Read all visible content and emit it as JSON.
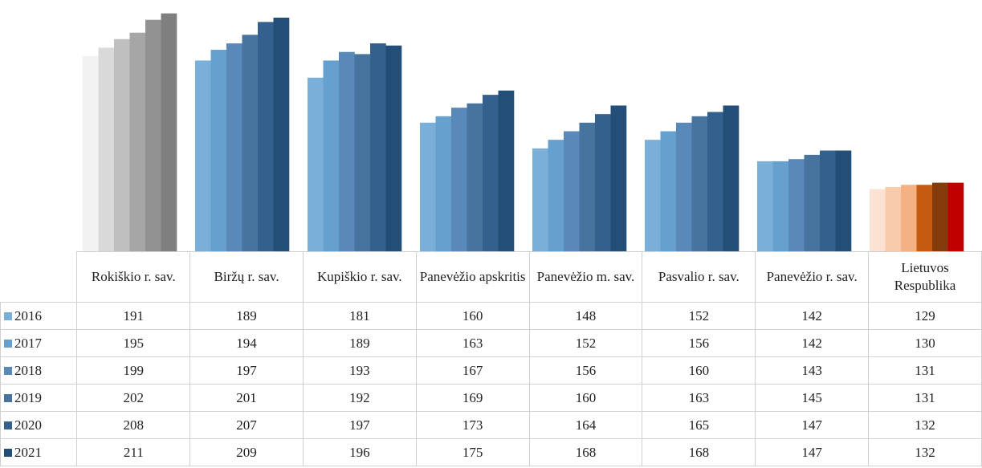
{
  "chart_data": {
    "type": "bar",
    "categories": [
      "Rokiškio r. sav.",
      "Biržų r. sav.",
      "Kupiškio r. sav.",
      "Panevėžio apskritis",
      "Panevėžio m. sav.",
      "Pasvalio r. sav.",
      "Panevėžio r. sav.",
      "Lietuvos Respublika"
    ],
    "ylim": [
      100,
      212
    ],
    "series": [
      {
        "name": "2016",
        "color": "#7aafd9",
        "point_colors": [
          "#f2f2f2",
          "#7aafd9",
          "#7aafd9",
          "#7aafd9",
          "#7aafd9",
          "#7aafd9",
          "#7aafd9",
          "#fbe2d2"
        ],
        "values": [
          191,
          189,
          181,
          160,
          148,
          152,
          142,
          129
        ]
      },
      {
        "name": "2017",
        "color": "#66a0cf",
        "point_colors": [
          "#d9d9d9",
          "#66a0cf",
          "#66a0cf",
          "#66a0cf",
          "#66a0cf",
          "#66a0cf",
          "#66a0cf",
          "#f8cbad"
        ],
        "values": [
          195,
          194,
          189,
          163,
          152,
          156,
          142,
          130
        ]
      },
      {
        "name": "2018",
        "color": "#5889b8",
        "point_colors": [
          "#bfbfbf",
          "#5889b8",
          "#5889b8",
          "#5889b8",
          "#5889b8",
          "#5889b8",
          "#5889b8",
          "#f4b183"
        ],
        "values": [
          199,
          197,
          193,
          167,
          156,
          160,
          143,
          131
        ]
      },
      {
        "name": "2019",
        "color": "#46749f",
        "point_colors": [
          "#a6a6a6",
          "#46749f",
          "#46749f",
          "#46749f",
          "#46749f",
          "#46749f",
          "#46749f",
          "#c55a11"
        ],
        "values": [
          202,
          201,
          192,
          169,
          160,
          163,
          145,
          131
        ]
      },
      {
        "name": "2020",
        "color": "#33608c",
        "point_colors": [
          "#929292",
          "#33608c",
          "#33608c",
          "#33608c",
          "#33608c",
          "#33608c",
          "#33608c",
          "#843c0c"
        ],
        "values": [
          208,
          207,
          197,
          173,
          164,
          165,
          147,
          132
        ]
      },
      {
        "name": "2021",
        "color": "#234e78",
        "point_colors": [
          "#7f7f7f",
          "#234e78",
          "#234e78",
          "#234e78",
          "#234e78",
          "#234e78",
          "#234e78",
          "#c00000"
        ],
        "values": [
          211,
          209,
          196,
          175,
          168,
          168,
          147,
          132
        ]
      }
    ]
  }
}
